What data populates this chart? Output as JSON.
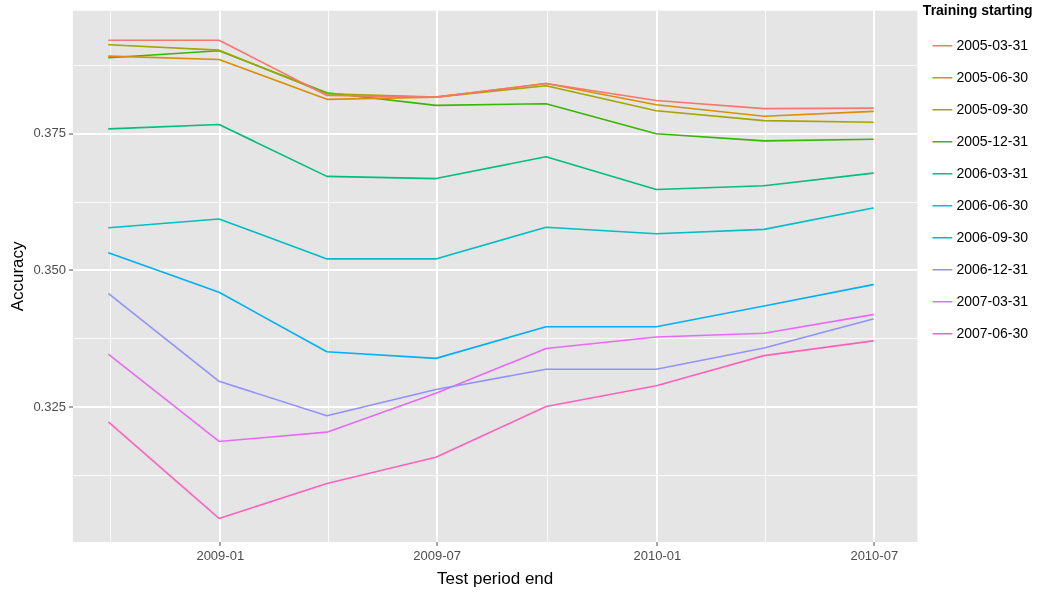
{
  "chart_data": {
    "type": "line",
    "xlabel": "Test period end",
    "ylabel": "Accuracy",
    "legend_title": "Training starting",
    "x": [
      "2008-09-30",
      "2008-12-31",
      "2009-03-31",
      "2009-06-30",
      "2009-09-30",
      "2009-12-31",
      "2010-03-31",
      "2010-06-30"
    ],
    "xlim": [
      "2008-08-31",
      "2010-08-06"
    ],
    "xticks": [
      {
        "value": "2008-10",
        "label": null
      },
      "2009-01",
      {
        "value": "2009-04",
        "label": null
      },
      "2009-07",
      {
        "value": "2009-10",
        "label": null
      },
      "2010-01",
      {
        "value": "2010-04",
        "label": null
      },
      "2010-07"
    ],
    "ylim": [
      0.3003,
      0.3975
    ],
    "yticks": [
      {
        "value": 0.3125,
        "label": null
      },
      0.325,
      {
        "value": 0.3375,
        "label": null
      },
      {
        "value": 0.35,
        "label": "0.350"
      },
      {
        "value": 0.3625,
        "label": null
      },
      0.375,
      {
        "value": 0.3875,
        "label": null
      }
    ],
    "grid": true,
    "legend": "right",
    "marker": "none",
    "line_style": "solid",
    "series": [
      {
        "name": "2005-03-31",
        "color": "#f8766d",
        "values": [
          0.3921,
          0.3921,
          0.382,
          0.3817,
          0.3842,
          0.3811,
          0.3796,
          0.3797
        ]
      },
      {
        "name": "2005-06-30",
        "color": "#d89000",
        "values": [
          0.3892,
          0.3886,
          0.3813,
          0.3817,
          0.3842,
          0.3803,
          0.3782,
          0.3791
        ]
      },
      {
        "name": "2005-09-30",
        "color": "#a3a500",
        "values": [
          0.3913,
          0.3903,
          0.3823,
          0.3817,
          0.3838,
          0.3792,
          0.3774,
          0.3771
        ]
      },
      {
        "name": "2005-12-31",
        "color": "#39b600",
        "values": [
          0.3889,
          0.3902,
          0.3825,
          0.3802,
          0.3805,
          0.375,
          0.3737,
          0.374
        ]
      },
      {
        "name": "2006-03-31",
        "color": "#00bf7d",
        "values": [
          0.3759,
          0.3767,
          0.3672,
          0.3668,
          0.3708,
          0.3648,
          0.3655,
          0.3678
        ]
      },
      {
        "name": "2006-06-30",
        "color": "#00bfc4",
        "values": [
          0.3578,
          0.3594,
          0.3521,
          0.3521,
          0.3579,
          0.3567,
          0.3575,
          0.3614
        ]
      },
      {
        "name": "2006-09-30",
        "color": "#00b0f6",
        "values": [
          0.3532,
          0.346,
          0.3351,
          0.3339,
          0.3397,
          0.3397,
          0.3435,
          0.3474
        ]
      },
      {
        "name": "2006-12-31",
        "color": "#9590ff",
        "values": [
          0.3457,
          0.3297,
          0.3234,
          0.3282,
          0.3319,
          0.3319,
          0.3358,
          0.3411
        ]
      },
      {
        "name": "2007-03-31",
        "color": "#e76bf3",
        "values": [
          0.3346,
          0.3187,
          0.3204,
          0.3275,
          0.3357,
          0.3378,
          0.3385,
          0.3419
        ]
      },
      {
        "name": "2007-06-30",
        "color": "#ff62bc",
        "values": [
          0.3222,
          0.3046,
          0.311,
          0.3158,
          0.3251,
          0.3289,
          0.3344,
          0.3371
        ]
      }
    ]
  }
}
